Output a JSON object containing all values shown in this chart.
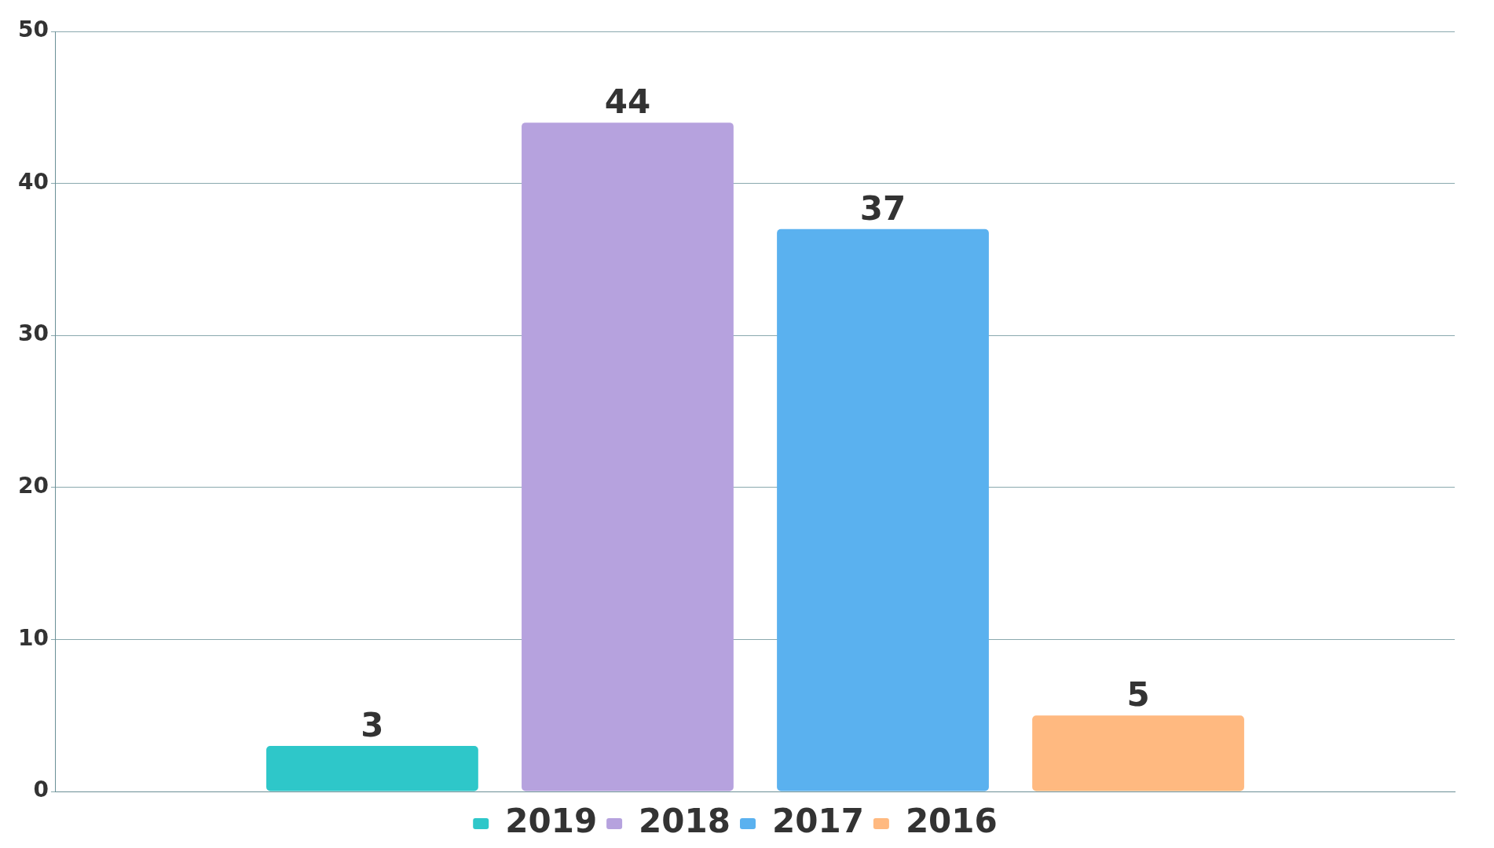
{
  "chart_data": {
    "type": "bar",
    "categories": [
      null
    ],
    "series": [
      {
        "name": "2019",
        "color": "#2ec7c9",
        "values": [
          3
        ]
      },
      {
        "name": "2018",
        "color": "#b6a2de",
        "values": [
          44
        ]
      },
      {
        "name": "2017",
        "color": "#5ab1ef",
        "values": [
          37
        ]
      },
      {
        "name": "2016",
        "color": "#ffb980",
        "values": [
          5
        ]
      }
    ],
    "ylim": [
      0,
      50
    ],
    "yticks": [
      0,
      10,
      20,
      30,
      40,
      50
    ],
    "grid": "y",
    "legend": "bottom",
    "data_labels": true
  }
}
